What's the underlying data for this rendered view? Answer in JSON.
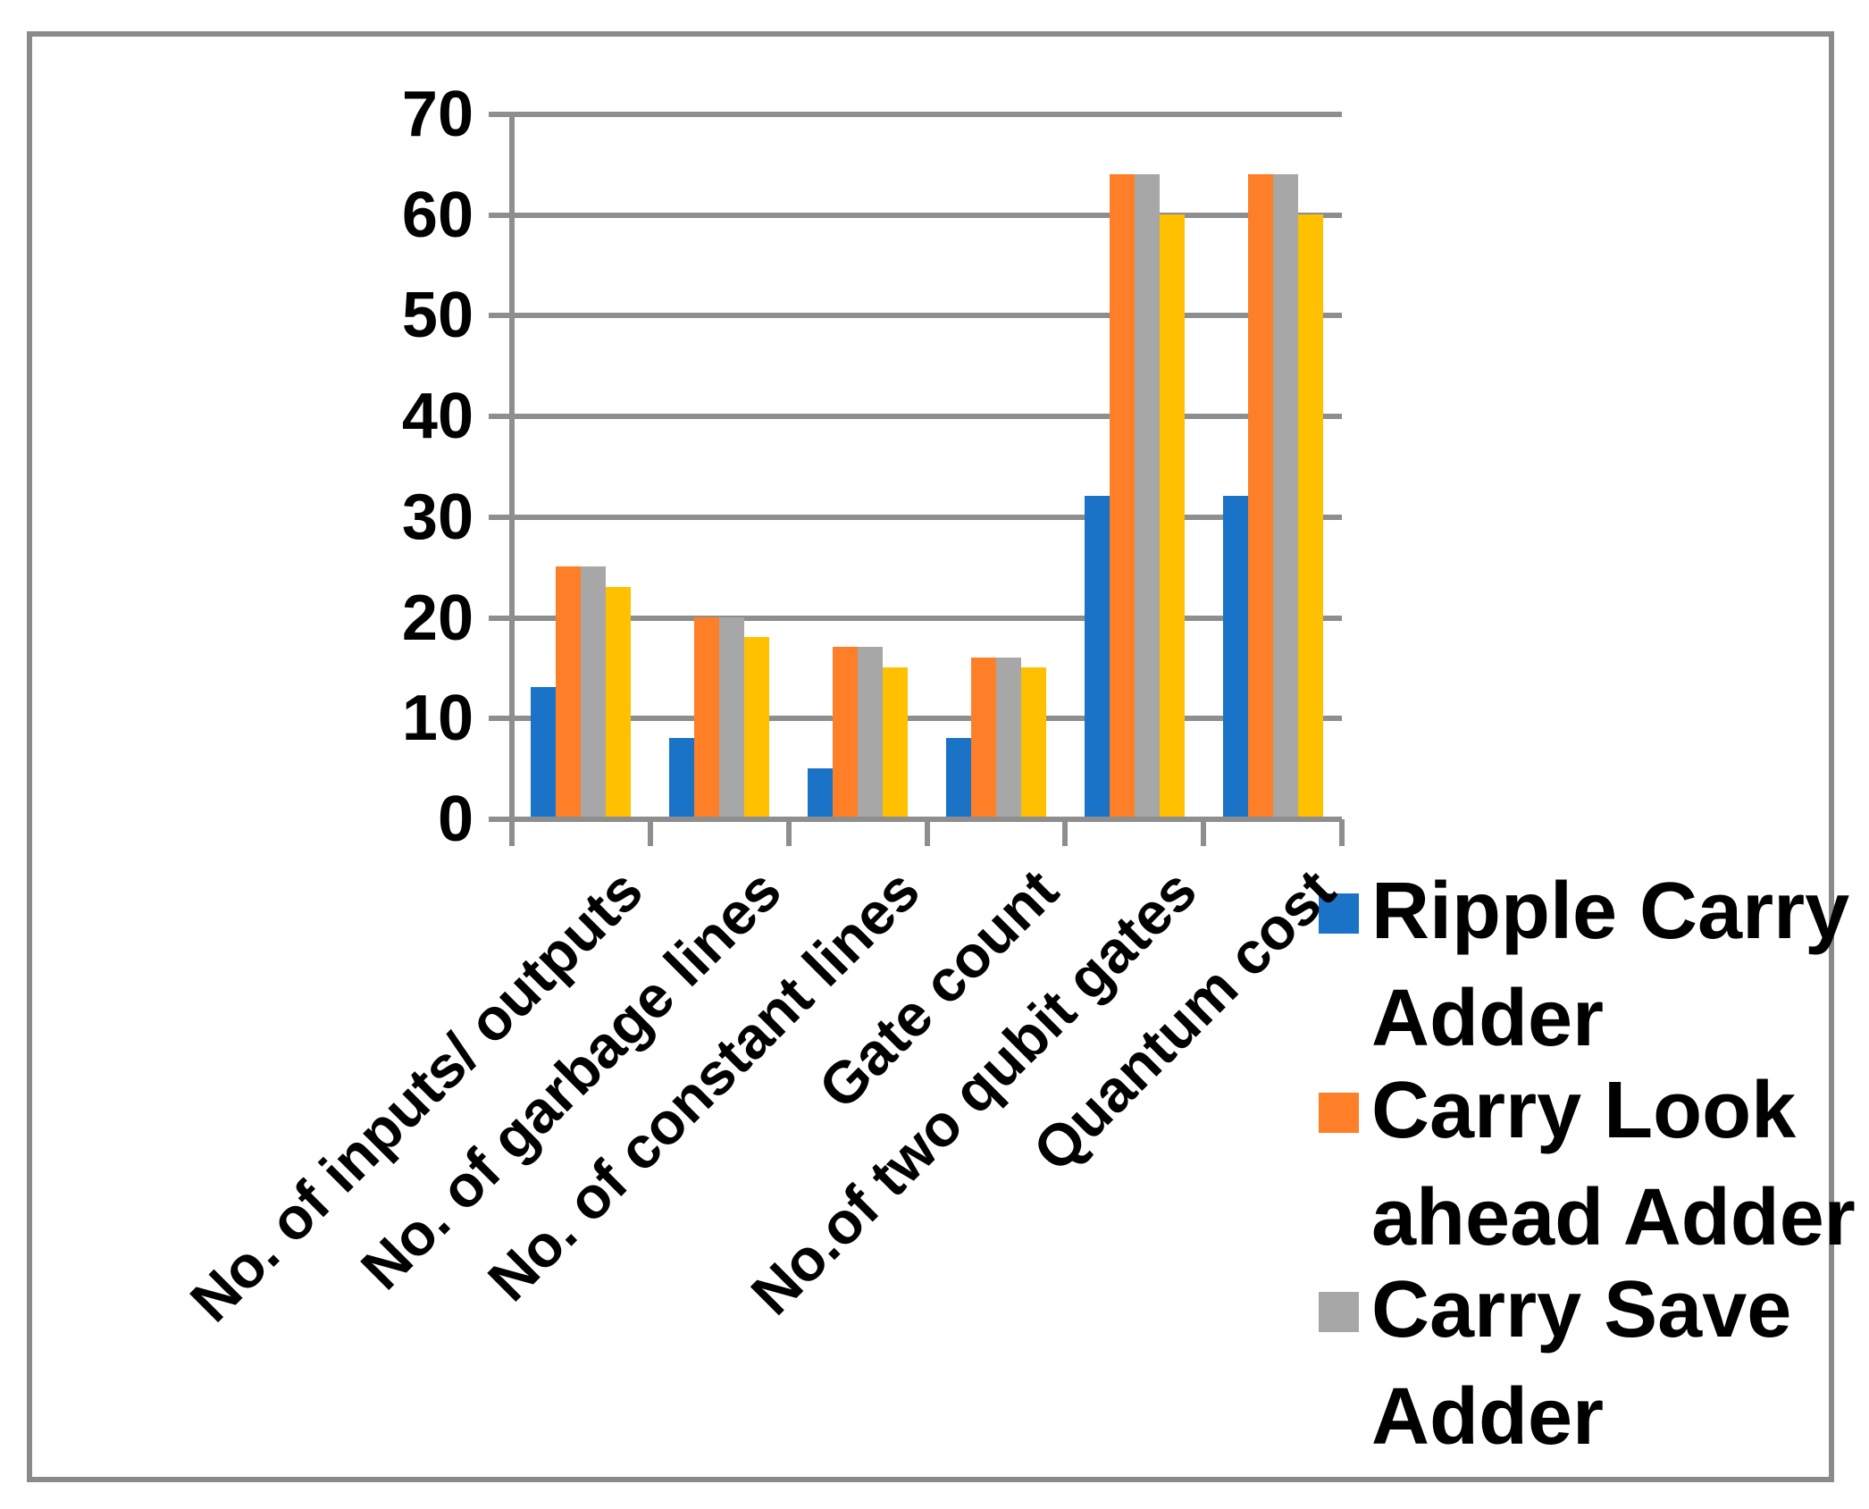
{
  "chart_data": {
    "type": "bar",
    "title": "",
    "categories": [
      "No. of inputs/ outputs",
      "No. of garbage lines",
      "No. of constant lines",
      "Gate count",
      "No.of two qubit gates",
      "Quantum cost"
    ],
    "series": [
      {
        "name": "Ripple Carry Adder",
        "color": "#1B73C8",
        "legend_visible": true,
        "values": [
          13,
          8,
          5,
          8,
          32,
          32
        ]
      },
      {
        "name": "Carry Look ahead Adder",
        "color": "#FF7E28",
        "legend_visible": true,
        "values": [
          25,
          20,
          17,
          16,
          64,
          64
        ]
      },
      {
        "name": "Carry Save Adder",
        "color": "#A7A7A7",
        "legend_visible": true,
        "values": [
          25,
          20,
          17,
          16,
          64,
          64
        ]
      },
      {
        "name": "",
        "color": "#FFC000",
        "legend_visible": false,
        "values": [
          23,
          18,
          15,
          15,
          60,
          60
        ]
      }
    ],
    "ylim": [
      0,
      70
    ],
    "yticks": [
      0,
      10,
      20,
      30,
      40,
      50,
      60,
      70
    ],
    "grid": true,
    "legend_position": "right",
    "xlabel": "",
    "ylabel": ""
  },
  "colors": {
    "gridline": "#8E8E8E",
    "frame_border": "#8A8A8A",
    "text": "#000000",
    "background": "#FFFFFF"
  }
}
